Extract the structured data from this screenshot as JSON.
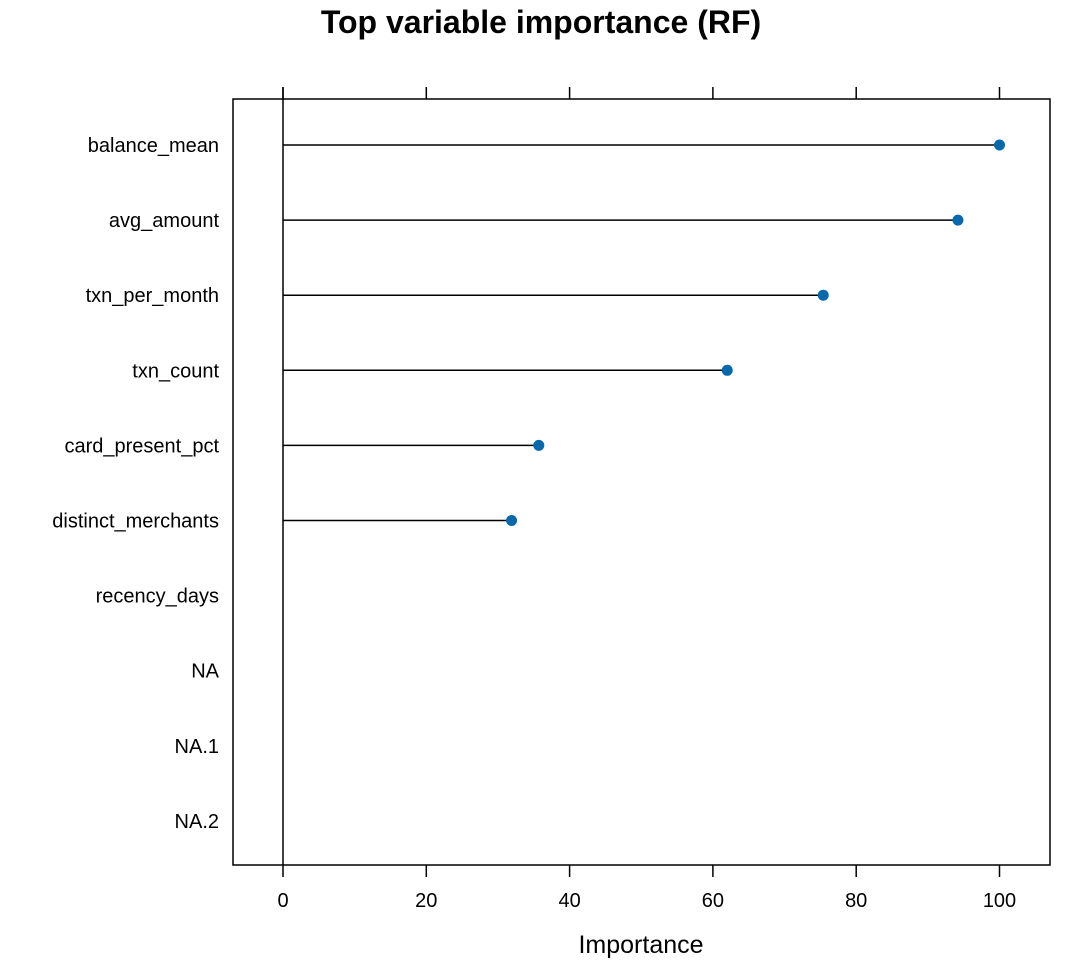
{
  "chart_data": {
    "type": "scatter",
    "title": "Top variable importance (RF)",
    "xlabel": "Importance",
    "ylabel": "",
    "xlim": [
      -7,
      107
    ],
    "x_ticks": [
      0,
      20,
      40,
      60,
      80,
      100
    ],
    "grid": false,
    "legend": "none",
    "categories": [
      "balance_mean",
      "avg_amount",
      "txn_per_month",
      "txn_count",
      "card_present_pct",
      "distinct_merchants",
      "recency_days",
      "NA",
      "NA.1",
      "NA.2"
    ],
    "values": [
      100,
      94.2,
      75.4,
      62.0,
      35.7,
      31.9,
      0,
      null,
      null,
      null
    ],
    "colors": {
      "point": "#0868ac",
      "line": "#000000",
      "axis": "#000000"
    }
  }
}
